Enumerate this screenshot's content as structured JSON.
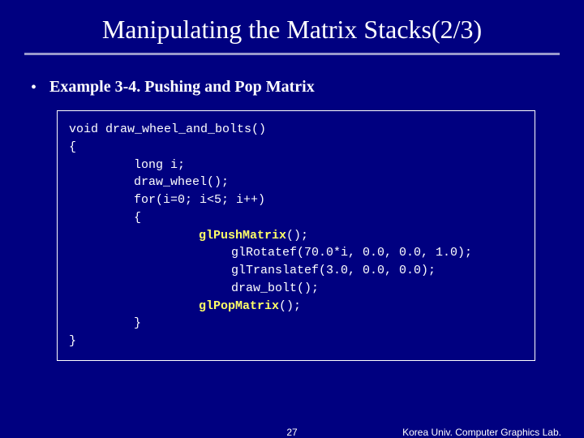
{
  "title": "Manipulating the Matrix Stacks(2/3)",
  "bullet": "Example 3-4. Pushing and Pop Matrix",
  "code": {
    "l1": "void draw_wheel_and_bolts()",
    "l2": "{",
    "l3": "long i;",
    "l4": "draw_wheel();",
    "l5": "for(i=0; i<5; i++)",
    "l6": "{",
    "l7a": "glPushMatrix",
    "l7b": "();",
    "l8": "glRotatef(70.0*i, 0.0, 0.0, 1.0);",
    "l9": "glTranslatef(3.0, 0.0, 0.0);",
    "l10": "draw_bolt();",
    "l11a": "glPopMatrix",
    "l11b": "();",
    "l12": "}",
    "l13": "}"
  },
  "page_number": "27",
  "lab_text": "Korea Univ. Computer Graphics Lab.",
  "colors": {
    "background": "#000080",
    "text": "#ffffff",
    "highlight": "#ffff66",
    "underline": "#9999cc"
  }
}
